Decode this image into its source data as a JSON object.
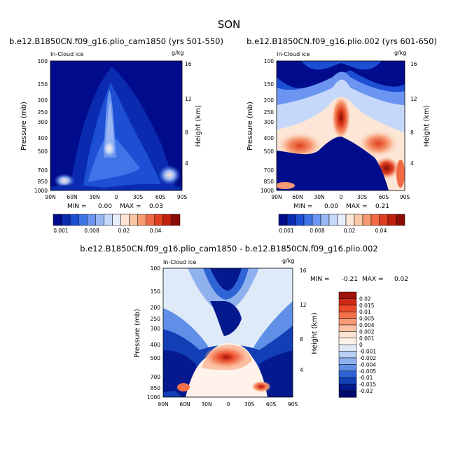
{
  "season": "SON",
  "variable_label": "In-Cloud ice",
  "units": "g/kg",
  "ylabel": "Pressure (mb)",
  "ylabel_right": "Height (km)",
  "min_label": "MIN =",
  "max_label": "MAX =",
  "chart_data": [
    {
      "type": "heatmap",
      "title": "b.e12.B1850CN.f09_g16.plio_cam1850 (yrs 501-550)",
      "xlabel": "",
      "ylabel": "Pressure (mb)",
      "ylabel_right": "Height (km)",
      "x_ticks": [
        "90N",
        "60N",
        "30N",
        "0",
        "30S",
        "60S",
        "90S"
      ],
      "y_ticks": [
        "100",
        "150",
        "200",
        "250",
        "300",
        "400",
        "500",
        "700",
        "850",
        "1000"
      ],
      "y_right_ticks": [
        "16",
        "12",
        "8",
        "4"
      ],
      "min": "0.00",
      "max": "0.03",
      "colorbar_ticks": [
        "0.001",
        "0.008",
        "0.02",
        "0.04"
      ],
      "colorbar_colors": [
        "#000c8b",
        "#0a2bb0",
        "#1c4fd4",
        "#3f74e8",
        "#6b95f0",
        "#9ab7f5",
        "#c6d8fa",
        "#e6eefc",
        "#fde6d6",
        "#fbc6a4",
        "#f79a72",
        "#f26a45",
        "#e03f1f",
        "#c0200e",
        "#8a0c05"
      ]
    },
    {
      "type": "heatmap",
      "title": "b.e12.B1850CN.f09_g16.plio.002 (yrs 601-650)",
      "xlabel": "",
      "ylabel": "Pressure (mb)",
      "ylabel_right": "Height (km)",
      "x_ticks": [
        "90N",
        "60N",
        "30N",
        "0",
        "30S",
        "60S",
        "90S"
      ],
      "y_ticks": [
        "100",
        "150",
        "200",
        "250",
        "300",
        "400",
        "500",
        "700",
        "850",
        "1000"
      ],
      "y_right_ticks": [
        "16",
        "12",
        "8",
        "4"
      ],
      "min": "0.00",
      "max": "0.21",
      "colorbar_ticks": [
        "0.001",
        "0.008",
        "0.02",
        "0.04"
      ],
      "colorbar_colors": [
        "#000c8b",
        "#0a2bb0",
        "#1c4fd4",
        "#3f74e8",
        "#6b95f0",
        "#9ab7f5",
        "#c6d8fa",
        "#e6eefc",
        "#fde6d6",
        "#fbc6a4",
        "#f79a72",
        "#f26a45",
        "#e03f1f",
        "#c0200e",
        "#8a0c05"
      ]
    },
    {
      "type": "heatmap",
      "title": "b.e12.B1850CN.f09_g16.plio_cam1850 - b.e12.B1850CN.f09_g16.plio.002",
      "xlabel": "",
      "ylabel": "Pressure (mb)",
      "ylabel_right": "Height (km)",
      "x_ticks": [
        "90N",
        "60N",
        "30N",
        "0",
        "30S",
        "60S",
        "90S"
      ],
      "y_ticks": [
        "100",
        "150",
        "200",
        "250",
        "300",
        "400",
        "500",
        "700",
        "850",
        "1000"
      ],
      "y_right_ticks": [
        "16",
        "12",
        "8",
        "4"
      ],
      "min": "-0.21",
      "max": "0.02",
      "legend_levels": [
        "0.02",
        "0.015",
        "0.01",
        "0.005",
        "0.004",
        "0.002",
        "0.001",
        "0",
        "-0.001",
        "-0.002",
        "-0.004",
        "-0.005",
        "-0.01",
        "-0.015",
        "-0.02"
      ],
      "legend_colors": [
        "#a0120a",
        "#cc2a14",
        "#e84a2a",
        "#f4714a",
        "#f89a76",
        "#fbc1a4",
        "#fde2d2",
        "#fff2ea",
        "#dfeaf9",
        "#b9cff4",
        "#8fb1ee",
        "#5f8fe6",
        "#2f64d6",
        "#123fb6",
        "#05198e",
        "#000a6e"
      ]
    }
  ]
}
